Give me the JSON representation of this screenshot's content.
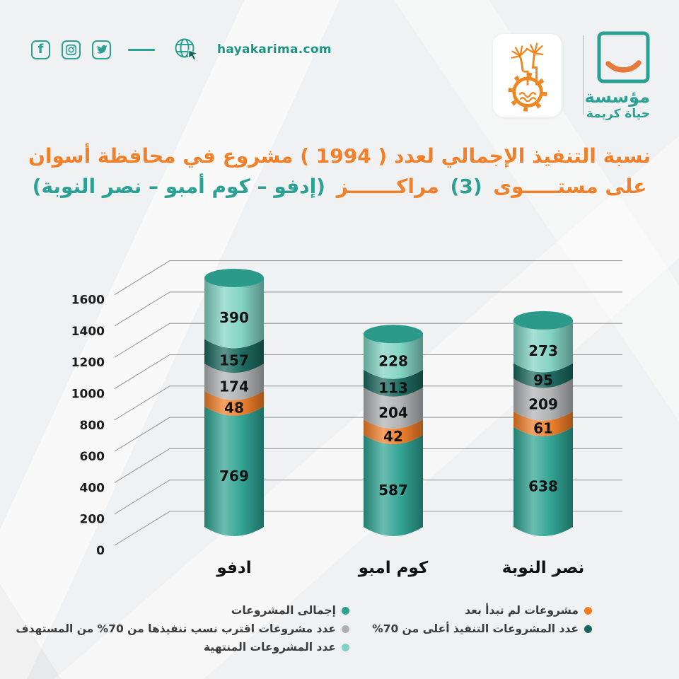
{
  "header": {
    "website": "hayakarima.com",
    "social": [
      "facebook",
      "instagram",
      "twitter"
    ],
    "brand": {
      "line1": "مؤسسة",
      "line2": "حياة كريمة"
    }
  },
  "title": {
    "line1": "نسبة التنفيذ الإجمالي لعدد ( 1994 ) مشروع في محافظة أسوان",
    "line2_part1": "على مستـــــوى",
    "line2_part2": "(3)",
    "line2_part3": "مراكـــــــز",
    "line2_part4": "(إدفو – كوم أمبو – نصر النوبة)"
  },
  "colors": {
    "accent_teal": "#2aa193",
    "accent_orange": "#f0802a",
    "smile_orange": "#e8793c",
    "emblem_orange": "#ee8622",
    "text_dark": "#1c1c1c",
    "legend_text": "#3c3c3c",
    "grid_line": "#9b9b9b",
    "top_disc": "#2b9a8b",
    "bands": {
      "teal": "#2aa190",
      "orange": "#f07c24",
      "gray": "#aeb0b2",
      "darkteal": "#17665b",
      "mint": "#7fd2c2"
    }
  },
  "chart_data": {
    "type": "bar",
    "stacked": true,
    "shape": "3d-cylinder",
    "categories": [
      "ادفو",
      "كوم امبو",
      "نصر النوبة"
    ],
    "series": [
      {
        "name": "إجمالى المشروعات",
        "color_key": "teal",
        "values": [
          769,
          587,
          638
        ]
      },
      {
        "name": "مشروعات لم تبدأ بعد",
        "color_key": "orange",
        "values": [
          48,
          42,
          61
        ]
      },
      {
        "name": "عدد مشروعات اقترب نسب تنفيذها من 70% من المستهدف",
        "color_key": "gray",
        "values": [
          174,
          204,
          209
        ]
      },
      {
        "name": "عدد المشروعات التنفيذ أعلى من 70%",
        "color_key": "darkteal",
        "values": [
          157,
          113,
          95
        ]
      },
      {
        "name": "عدد المشروعات المنتهية",
        "color_key": "mint",
        "values": [
          390,
          228,
          273
        ]
      }
    ],
    "ylim": [
      0,
      1600
    ],
    "ytick_step": 200,
    "yticks": [
      0,
      200,
      400,
      600,
      800,
      1000,
      1200,
      1400,
      1600
    ],
    "grid": true,
    "legend_position": "bottom"
  }
}
